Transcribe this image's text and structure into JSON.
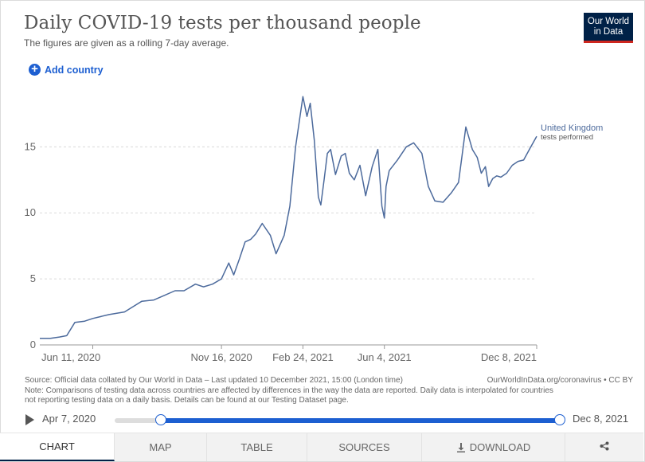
{
  "header": {
    "title": "Daily COVID-19 tests per thousand people",
    "subtitle": "The figures are given as a rolling 7-day average."
  },
  "logo": {
    "line1": "Our World",
    "line2": "in Data"
  },
  "controls": {
    "add_country_label": "Add country"
  },
  "chart_data": {
    "type": "line",
    "title": "Daily COVID-19 tests per thousand people",
    "subtitle": "The figures are given as a rolling 7-day average.",
    "x_ticks": [
      "Jun 11, 2020",
      "Nov 16, 2020",
      "Feb 24, 2021",
      "Jun 4, 2021",
      "Dec 8, 2021"
    ],
    "y_ticks": [
      0,
      5,
      10,
      15
    ],
    "ylim": [
      0,
      19
    ],
    "xlim": [
      "2020-04-07",
      "2021-12-08"
    ],
    "grid": "horizontal dashed",
    "series": [
      {
        "name": "United Kingdom",
        "sublabel": "tests performed",
        "color": "#4c6a9c",
        "x": [
          "2020-04-07",
          "2020-04-20",
          "2020-05-01",
          "2020-05-10",
          "2020-05-20",
          "2020-06-01",
          "2020-06-11",
          "2020-07-01",
          "2020-07-20",
          "2020-08-10",
          "2020-08-25",
          "2020-09-05",
          "2020-09-20",
          "2020-10-01",
          "2020-10-15",
          "2020-10-25",
          "2020-11-05",
          "2020-11-16",
          "2020-11-25",
          "2020-12-01",
          "2020-12-08",
          "2020-12-15",
          "2020-12-22",
          "2020-12-28",
          "2021-01-05",
          "2021-01-15",
          "2021-01-22",
          "2021-02-01",
          "2021-02-08",
          "2021-02-15",
          "2021-02-24",
          "2021-03-01",
          "2021-03-05",
          "2021-03-10",
          "2021-03-15",
          "2021-03-18",
          "2021-03-22",
          "2021-03-26",
          "2021-03-30",
          "2021-04-05",
          "2021-04-12",
          "2021-04-17",
          "2021-04-22",
          "2021-04-28",
          "2021-05-05",
          "2021-05-12",
          "2021-05-20",
          "2021-05-27",
          "2021-06-01",
          "2021-06-04",
          "2021-06-06",
          "2021-06-10",
          "2021-06-20",
          "2021-07-01",
          "2021-07-10",
          "2021-07-20",
          "2021-07-28",
          "2021-08-05",
          "2021-08-15",
          "2021-08-25",
          "2021-09-03",
          "2021-09-12",
          "2021-09-20",
          "2021-09-26",
          "2021-10-01",
          "2021-10-06",
          "2021-10-10",
          "2021-10-15",
          "2021-10-20",
          "2021-10-25",
          "2021-11-01",
          "2021-11-08",
          "2021-11-15",
          "2021-11-22",
          "2021-11-29",
          "2021-12-08"
        ],
        "y": [
          0.5,
          0.5,
          0.6,
          0.7,
          1.7,
          1.8,
          2.0,
          2.3,
          2.5,
          3.3,
          3.4,
          3.7,
          4.1,
          4.1,
          4.6,
          4.4,
          4.6,
          5.0,
          6.2,
          5.3,
          6.5,
          7.8,
          8.0,
          8.4,
          9.2,
          8.3,
          6.9,
          8.3,
          10.5,
          15.0,
          18.8,
          17.3,
          18.3,
          15.5,
          11.2,
          10.6,
          12.5,
          14.5,
          14.8,
          12.9,
          14.3,
          14.5,
          13.0,
          12.5,
          13.6,
          11.3,
          13.5,
          14.8,
          10.5,
          9.6,
          12.0,
          13.2,
          14.0,
          15.0,
          15.3,
          14.5,
          12.0,
          10.9,
          10.8,
          11.5,
          12.3,
          16.5,
          14.8,
          14.2,
          13.0,
          13.5,
          12.0,
          12.6,
          12.8,
          12.7,
          13.0,
          13.6,
          13.9,
          14.0,
          14.8,
          15.8
        ]
      }
    ]
  },
  "footer": {
    "source": "Source: Official data collated by Our World in Data – Last updated 10 December 2021, 15:00 (London time)",
    "url": "OurWorldInData.org/coronavirus • CC BY",
    "note_line1": "Note: Comparisons of testing data across countries are affected by differences in the way the data are reported. Daily data is interpolated for countries",
    "note_line2": "not reporting testing data on a daily basis. Details can be found at our Testing Dataset page."
  },
  "timeline": {
    "start_label": "Apr 7, 2020",
    "end_label": "Dec 8, 2021",
    "start_fraction": 0.0,
    "end_fraction": 1.0
  },
  "tabs": [
    {
      "label": "CHART",
      "active": true
    },
    {
      "label": "MAP"
    },
    {
      "label": "TABLE"
    },
    {
      "label": "SOURCES"
    },
    {
      "label": "DOWNLOAD"
    }
  ],
  "colors": {
    "accent": "#1d5fd1",
    "line": "#4c6a9c",
    "logo_bg": "#002147",
    "logo_bar": "#ce261e"
  }
}
